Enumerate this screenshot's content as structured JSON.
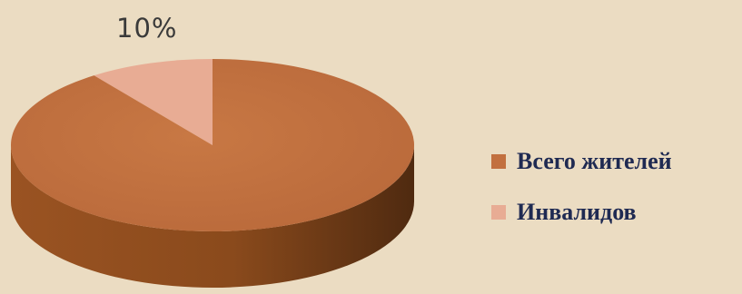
{
  "chart_data": {
    "type": "pie",
    "title": "",
    "style": "3d",
    "slices": [
      {
        "label": "Всего жителей",
        "value": 90,
        "color": "#c2703f"
      },
      {
        "label": "Инвалидов",
        "value": 10,
        "color": "#e8ac94"
      }
    ],
    "data_labels": [
      {
        "slice": "Инвалидов",
        "text": "10%"
      }
    ],
    "legend_position": "right"
  }
}
